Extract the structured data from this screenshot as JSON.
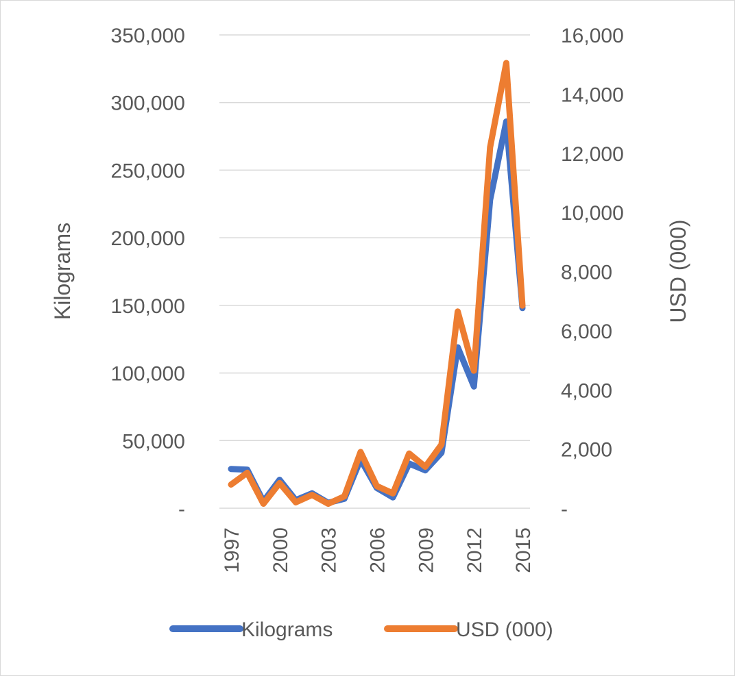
{
  "chart_data": {
    "type": "line",
    "title": "",
    "x": [
      1997,
      1998,
      1999,
      2000,
      2001,
      2002,
      2003,
      2004,
      2005,
      2006,
      2007,
      2008,
      2009,
      2010,
      2011,
      2012,
      2013,
      2014,
      2015
    ],
    "xticks": [
      "1997",
      "2000",
      "2003",
      "2006",
      "2009",
      "2012",
      "2015"
    ],
    "ylabel_left": "Kilograms",
    "ylabel_right": "USD (000)",
    "ylim_left": [
      0,
      350000
    ],
    "ylim_right": [
      0,
      16000
    ],
    "yticks_left": [
      "-",
      "50,000",
      "100,000",
      "150,000",
      "200,000",
      "250,000",
      "300,000",
      "350,000"
    ],
    "yticks_right": [
      "-",
      "2,000",
      "4,000",
      "6,000",
      "8,000",
      "10,000",
      "12,000",
      "14,000",
      "16,000"
    ],
    "grid": true,
    "legend_position": "bottom",
    "series": [
      {
        "name": "Kilograms",
        "axis": "left",
        "color": "#4472c4",
        "values": [
          29000,
          28500,
          5000,
          21000,
          6000,
          11000,
          4000,
          7000,
          36000,
          15000,
          8000,
          33000,
          28000,
          41000,
          119000,
          90000,
          228000,
          286000,
          148000
        ]
      },
      {
        "name": "USD (000)",
        "axis": "right",
        "color": "#ed7d31",
        "values": [
          800,
          1200,
          150,
          850,
          200,
          450,
          150,
          400,
          1900,
          750,
          500,
          1850,
          1400,
          2150,
          6650,
          4650,
          12200,
          15050,
          6850
        ]
      }
    ]
  }
}
